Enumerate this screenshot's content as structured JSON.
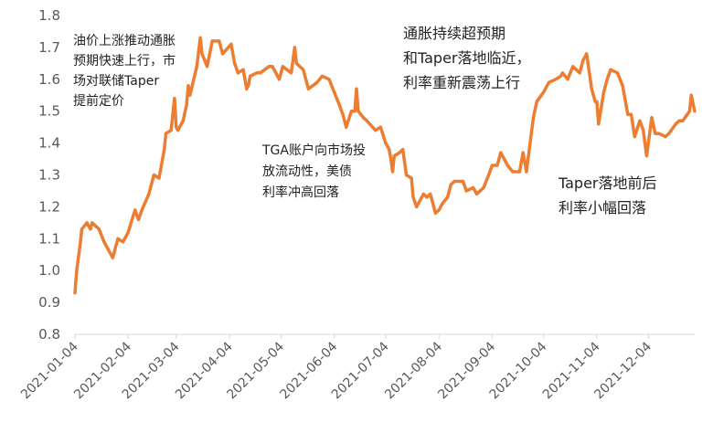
{
  "chart_data": {
    "type": "line",
    "title": "",
    "xlabel": "",
    "ylabel": "",
    "ylim": [
      0.8,
      1.8
    ],
    "yticks": [
      0.8,
      0.9,
      1.0,
      1.1,
      1.2,
      1.3,
      1.4,
      1.5,
      1.6,
      1.7,
      1.8
    ],
    "ytick_labels": [
      "0.8",
      "0.9",
      "1.0",
      "1.1",
      "1.2",
      "1.3",
      "1.4",
      "1.5",
      "1.6",
      "1.7",
      "1.8"
    ],
    "xlim": [
      "2021-01-04",
      "2021-12-31"
    ],
    "xtick_labels": [
      "2021-01-04",
      "2021-02-04",
      "2021-03-04",
      "2021-04-04",
      "2021-05-04",
      "2021-06-04",
      "2021-07-04",
      "2021-08-04",
      "2021-09-04",
      "2021-10-04",
      "2021-11-04",
      "2021-12-04"
    ],
    "grid": false,
    "series": [
      {
        "color": "#ED7D31",
        "x": [
          "2021-01-04",
          "2021-01-05",
          "2021-01-07",
          "2021-01-08",
          "2021-01-11",
          "2021-01-13",
          "2021-01-14",
          "2021-01-18",
          "2021-01-21",
          "2021-01-26",
          "2021-01-29",
          "2021-02-01",
          "2021-02-04",
          "2021-02-08",
          "2021-02-10",
          "2021-02-12",
          "2021-02-16",
          "2021-02-19",
          "2021-02-22",
          "2021-02-24",
          "2021-02-25",
          "2021-02-26",
          "2021-03-01",
          "2021-03-03",
          "2021-03-04",
          "2021-03-05",
          "2021-03-08",
          "2021-03-10",
          "2021-03-11",
          "2021-03-12",
          "2021-03-16",
          "2021-03-18",
          "2021-03-19",
          "2021-03-22",
          "2021-03-25",
          "2021-03-29",
          "2021-03-31",
          "2021-04-05",
          "2021-04-07",
          "2021-04-09",
          "2021-04-12",
          "2021-04-14",
          "2021-04-15",
          "2021-04-16",
          "2021-04-20",
          "2021-04-22",
          "2021-04-27",
          "2021-04-29",
          "2021-05-03",
          "2021-05-05",
          "2021-05-10",
          "2021-05-12",
          "2021-05-13",
          "2021-05-17",
          "2021-05-20",
          "2021-05-25",
          "2021-05-28",
          "2021-06-01",
          "2021-06-04",
          "2021-06-07",
          "2021-06-09",
          "2021-06-10",
          "2021-06-11",
          "2021-06-14",
          "2021-06-16",
          "2021-06-17",
          "2021-06-18",
          "2021-06-21",
          "2021-06-23",
          "2021-06-28",
          "2021-07-01",
          "2021-07-04",
          "2021-07-06",
          "2021-07-07",
          "2021-07-08",
          "2021-07-09",
          "2021-07-12",
          "2021-07-14",
          "2021-07-16",
          "2021-07-19",
          "2021-07-20",
          "2021-07-22",
          "2021-07-26",
          "2021-07-28",
          "2021-07-30",
          "2021-08-02",
          "2021-08-04",
          "2021-08-06",
          "2021-08-09",
          "2021-08-11",
          "2021-08-13",
          "2021-08-16",
          "2021-08-18",
          "2021-08-20",
          "2021-08-24",
          "2021-08-26",
          "2021-08-30",
          "2021-09-02",
          "2021-09-04",
          "2021-09-07",
          "2021-09-09",
          "2021-09-13",
          "2021-09-16",
          "2021-09-20",
          "2021-09-22",
          "2021-09-24",
          "2021-09-28",
          "2021-09-30",
          "2021-10-04",
          "2021-10-07",
          "2021-10-11",
          "2021-10-14",
          "2021-10-15",
          "2021-10-18",
          "2021-10-21",
          "2021-10-25",
          "2021-10-27",
          "2021-10-29",
          "2021-11-01",
          "2021-11-03",
          "2021-11-04",
          "2021-11-05",
          "2021-11-08",
          "2021-11-10",
          "2021-11-12",
          "2021-11-16",
          "2021-11-19",
          "2021-11-22",
          "2021-11-24",
          "2021-11-26",
          "2021-11-29",
          "2021-12-01",
          "2021-12-03",
          "2021-12-06",
          "2021-12-08",
          "2021-12-10",
          "2021-12-14",
          "2021-12-16",
          "2021-12-20",
          "2021-12-22",
          "2021-12-24",
          "2021-12-28",
          "2021-12-29",
          "2021-12-31"
        ],
        "y": [
          0.93,
          1.0,
          1.08,
          1.13,
          1.15,
          1.13,
          1.15,
          1.13,
          1.09,
          1.04,
          1.1,
          1.09,
          1.12,
          1.19,
          1.16,
          1.19,
          1.24,
          1.3,
          1.29,
          1.35,
          1.38,
          1.43,
          1.44,
          1.54,
          1.45,
          1.44,
          1.47,
          1.52,
          1.58,
          1.55,
          1.64,
          1.73,
          1.68,
          1.64,
          1.72,
          1.72,
          1.68,
          1.71,
          1.65,
          1.62,
          1.63,
          1.57,
          1.58,
          1.61,
          1.62,
          1.62,
          1.64,
          1.64,
          1.6,
          1.64,
          1.62,
          1.7,
          1.65,
          1.63,
          1.57,
          1.59,
          1.61,
          1.6,
          1.56,
          1.52,
          1.49,
          1.47,
          1.45,
          1.5,
          1.5,
          1.57,
          1.5,
          1.48,
          1.47,
          1.44,
          1.45,
          1.4,
          1.38,
          1.35,
          1.31,
          1.36,
          1.37,
          1.38,
          1.3,
          1.29,
          1.23,
          1.2,
          1.24,
          1.23,
          1.24,
          1.18,
          1.19,
          1.21,
          1.23,
          1.27,
          1.28,
          1.28,
          1.28,
          1.25,
          1.26,
          1.24,
          1.26,
          1.3,
          1.33,
          1.33,
          1.37,
          1.33,
          1.31,
          1.31,
          1.37,
          1.31,
          1.48,
          1.53,
          1.56,
          1.59,
          1.6,
          1.61,
          1.62,
          1.6,
          1.64,
          1.62,
          1.66,
          1.68,
          1.57,
          1.53,
          1.53,
          1.46,
          1.56,
          1.6,
          1.63,
          1.62,
          1.58,
          1.49,
          1.49,
          1.42,
          1.47,
          1.44,
          1.36,
          1.48,
          1.43,
          1.43,
          1.42,
          1.43,
          1.46,
          1.47,
          1.47,
          1.5,
          1.55,
          1.5
        ]
      }
    ],
    "annotations": [
      {
        "lines": [
          "油价上涨推动通胀",
          "预期快速上行，市",
          "场对联储Taper",
          "提前定价"
        ]
      },
      {
        "lines": [
          "TGA账户向市场投",
          "放流动性，美债",
          "利率冲高回落"
        ]
      },
      {
        "lines": [
          "通胀持续超预期",
          "和Taper落地临近，",
          "利率重新震荡上行"
        ]
      },
      {
        "lines": [
          "Taper落地前后",
          "利率小幅回落"
        ]
      }
    ]
  }
}
